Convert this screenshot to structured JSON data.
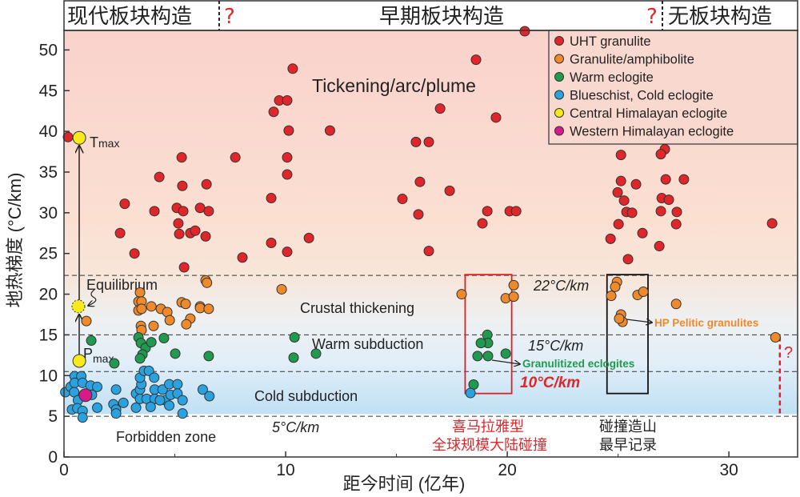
{
  "chart_data": {
    "type": "scatter",
    "xlabel": "距今时间 (亿年)",
    "ylabel": "地热梯度 (°C/km)",
    "xlim": [
      0,
      33.1
    ],
    "ylim": [
      0,
      52.4
    ],
    "xticks": [
      0,
      10,
      20,
      30
    ],
    "yticks": [
      0,
      5,
      10,
      15,
      20,
      25,
      30,
      35,
      40,
      45,
      50
    ],
    "grid": false,
    "legend_position": "top-right",
    "header": {
      "left": "现代板块构造",
      "center": "早期板块构造",
      "right": "无板块构造",
      "q1": "?",
      "q2": "?",
      "boundaries": [
        7.0,
        27.0
      ]
    },
    "gradient_lines": [
      {
        "label": "22°C/km",
        "y": 22.3
      },
      {
        "label": "15°C/km",
        "y": 15.0
      },
      {
        "label": "10°C/km",
        "y": 10.5
      },
      {
        "label": "5°C/km",
        "y": 5.0
      }
    ],
    "zones": {
      "plume": "Tickening/arc/plume",
      "crustal": "Crustal thickening",
      "warm": "Warm subduction",
      "cold": "Cold subduction",
      "forbidden": "Forbidden zone"
    },
    "annotations": {
      "tmax": "T",
      "tmax_sub": "max",
      "pmax": "P",
      "pmax_sub": "max",
      "equilibrium": "Equilibrium",
      "hp_pelitic": "HP Pelitic granulites",
      "granulitized": "Granulitized eclogites",
      "himalaya_line1": "喜马拉雅型",
      "himalaya_line2": "全球规模大陆碰撞",
      "earliest_line1": "碰撞造山",
      "earliest_line2": "最早记录",
      "question": "?"
    },
    "boxes": [
      {
        "name": "himalayan-type-box",
        "x": [
          18.1,
          20.2
        ],
        "y": [
          7.8,
          22.4
        ],
        "color": "#e02020"
      },
      {
        "name": "earliest-collision-box",
        "x": [
          24.5,
          26.35
        ],
        "y": [
          7.8,
          22.4
        ],
        "color": "#111111"
      }
    ],
    "question_line": {
      "x": 32.3,
      "y": [
        5.0,
        14.8
      ],
      "color": "#e02020"
    },
    "series": [
      {
        "name": "UHT granulite",
        "color": "#e0262a",
        "points": [
          [
            0.18,
            39.3
          ],
          [
            10.14,
            40.1
          ],
          [
            12.0,
            40.1
          ],
          [
            5.31,
            36.8
          ],
          [
            7.73,
            36.8
          ],
          [
            10.07,
            36.8
          ],
          [
            4.3,
            34.4
          ],
          [
            10.07,
            34.7
          ],
          [
            5.34,
            33.3
          ],
          [
            6.43,
            33.5
          ],
          [
            2.74,
            31.1
          ],
          [
            9.35,
            31.8
          ],
          [
            4.08,
            30.2
          ],
          [
            5.09,
            30.6
          ],
          [
            5.38,
            30.2
          ],
          [
            6.14,
            30.6
          ],
          [
            6.53,
            30.2
          ],
          [
            5.16,
            28.7
          ],
          [
            2.53,
            27.5
          ],
          [
            5.2,
            27.4
          ],
          [
            5.7,
            27.5
          ],
          [
            5.92,
            27.8
          ],
          [
            6.39,
            27.1
          ],
          [
            9.35,
            26.3
          ],
          [
            11.05,
            26.9
          ],
          [
            10.07,
            25.2
          ],
          [
            3.18,
            25.0
          ],
          [
            8.05,
            24.5
          ],
          [
            5.42,
            23.3
          ],
          [
            20.79,
            52.3
          ],
          [
            18.59,
            48.8
          ],
          [
            10.32,
            47.7
          ],
          [
            9.71,
            43.8
          ],
          [
            10.07,
            43.8
          ],
          [
            9.46,
            42.4
          ],
          [
            16.97,
            42.8
          ],
          [
            19.49,
            41.7
          ],
          [
            15.88,
            38.7
          ],
          [
            16.46,
            38.7
          ],
          [
            16.06,
            33.8
          ],
          [
            17.4,
            32.7
          ],
          [
            15.27,
            31.7
          ],
          [
            15.99,
            29.8
          ],
          [
            19.1,
            30.2
          ],
          [
            20.11,
            30.2
          ],
          [
            20.4,
            30.2
          ],
          [
            18.88,
            28.7
          ],
          [
            16.46,
            25.3
          ],
          [
            25.13,
            37.1
          ],
          [
            27.11,
            37.8
          ],
          [
            26.93,
            37.2
          ],
          [
            25.13,
            33.9
          ],
          [
            25.81,
            33.5
          ],
          [
            27.15,
            34.1
          ],
          [
            27.97,
            34.1
          ],
          [
            24.98,
            32.5
          ],
          [
            26.97,
            31.8
          ],
          [
            25.27,
            31.5
          ],
          [
            27.29,
            31.6
          ],
          [
            25.38,
            30.1
          ],
          [
            26.93,
            30.2
          ],
          [
            27.65,
            30.1
          ],
          [
            25.63,
            30.0
          ],
          [
            25.02,
            28.6
          ],
          [
            26.1,
            27.5
          ],
          [
            24.66,
            26.8
          ],
          [
            27.62,
            28.6
          ],
          [
            26.86,
            25.9
          ],
          [
            25.45,
            24.3
          ],
          [
            31.95,
            28.7
          ]
        ]
      },
      {
        "name": "Granulite/amphibolite",
        "color": "#ee8a2c",
        "points": [
          [
            1.01,
            16.7
          ],
          [
            3.43,
            20.2
          ],
          [
            3.36,
            19.1
          ],
          [
            3.5,
            19.1
          ],
          [
            3.36,
            18.0
          ],
          [
            3.5,
            18.2
          ],
          [
            3.94,
            18.5
          ],
          [
            4.37,
            18.2
          ],
          [
            4.66,
            17.8
          ],
          [
            4.77,
            16.8
          ],
          [
            5.31,
            19.0
          ],
          [
            5.49,
            18.8
          ],
          [
            5.7,
            17.0
          ],
          [
            5.52,
            16.3
          ],
          [
            6.14,
            18.5
          ],
          [
            6.14,
            18.3
          ],
          [
            6.53,
            18.2
          ],
          [
            6.39,
            21.7
          ],
          [
            6.45,
            21.4
          ],
          [
            4.04,
            16.1
          ],
          [
            3.47,
            16.1
          ],
          [
            3.5,
            15.6
          ],
          [
            9.82,
            20.6
          ],
          [
            17.94,
            20.0
          ],
          [
            19.93,
            19.5
          ],
          [
            20.29,
            21.1
          ],
          [
            20.29,
            19.7
          ],
          [
            24.95,
            21.5
          ],
          [
            24.87,
            20.9
          ],
          [
            24.69,
            19.8
          ],
          [
            25.13,
            17.5
          ],
          [
            25.2,
            16.6
          ],
          [
            25.05,
            17.0
          ],
          [
            25.88,
            19.9
          ],
          [
            26.14,
            20.3
          ],
          [
            27.62,
            18.8
          ],
          [
            32.1,
            14.7
          ]
        ]
      },
      {
        "name": "Warm eclogite",
        "color": "#1f9a4e",
        "points": [
          [
            1.23,
            14.3
          ],
          [
            3.36,
            14.7
          ],
          [
            3.47,
            14.0
          ],
          [
            3.68,
            13.4
          ],
          [
            3.94,
            14.1
          ],
          [
            4.51,
            14.6
          ],
          [
            3.54,
            12.6
          ],
          [
            3.43,
            12.1
          ],
          [
            2.27,
            11.5
          ],
          [
            5.02,
            12.7
          ],
          [
            6.53,
            12.4
          ],
          [
            10.4,
            14.7
          ],
          [
            10.36,
            12.2
          ],
          [
            11.37,
            12.7
          ],
          [
            19.1,
            15.0
          ],
          [
            19.13,
            14.0
          ],
          [
            18.81,
            14.0
          ],
          [
            18.66,
            12.4
          ],
          [
            19.13,
            12.4
          ],
          [
            19.93,
            12.7
          ],
          [
            18.48,
            8.9
          ]
        ]
      },
      {
        "name": "Blueschist, Cold eclogite",
        "color": "#2aa2e0",
        "points": [
          [
            0.06,
            7.96
          ],
          [
            0.3,
            8.61
          ],
          [
            0.48,
            9.92
          ],
          [
            0.78,
            9.92
          ],
          [
            0.48,
            9.1
          ],
          [
            0.84,
            9.1
          ],
          [
            0.46,
            7.96
          ],
          [
            0.63,
            6.97
          ],
          [
            0.36,
            5.83
          ],
          [
            0.6,
            5.99
          ],
          [
            0.84,
            5.67
          ],
          [
            0.84,
            4.85
          ],
          [
            1.2,
            8.78
          ],
          [
            1.5,
            8.61
          ],
          [
            1.26,
            7.63
          ],
          [
            1.5,
            6.06
          ],
          [
            2.35,
            8.28
          ],
          [
            2.23,
            6.48
          ],
          [
            2.35,
            5.83
          ],
          [
            2.35,
            5.34
          ],
          [
            2.68,
            6.65
          ],
          [
            3.25,
            7.79
          ],
          [
            3.25,
            6.06
          ],
          [
            3.43,
            8.28
          ],
          [
            3.49,
            8.94
          ],
          [
            3.43,
            9.75
          ],
          [
            3.61,
            10.58
          ],
          [
            3.83,
            10.58
          ],
          [
            4.07,
            9.75
          ],
          [
            3.43,
            7.14
          ],
          [
            3.73,
            7.14
          ],
          [
            4.09,
            8.28
          ],
          [
            4.09,
            7.14
          ],
          [
            4.45,
            8.28
          ],
          [
            4.57,
            6.97
          ],
          [
            4.75,
            8.94
          ],
          [
            5.12,
            8.94
          ],
          [
            4.81,
            7.63
          ],
          [
            5.12,
            7.79
          ],
          [
            5.35,
            6.97
          ],
          [
            4.75,
            6.32
          ],
          [
            5.35,
            5.34
          ],
          [
            6.26,
            8.28
          ],
          [
            6.56,
            7.47
          ],
          [
            3.91,
            6.16
          ],
          [
            4.33,
            6.97
          ],
          [
            18.34,
            7.86
          ]
        ]
      },
      {
        "name": "Central Himalayan eclogite",
        "color": "#f7ea1c",
        "points": [
          [
            0.69,
            39.2
          ],
          [
            0.65,
            18.5
          ],
          [
            0.69,
            11.8
          ]
        ]
      },
      {
        "name": "Western Himalayan eclogite",
        "color": "#d8198a",
        "points": [
          [
            0.97,
            7.6
          ]
        ]
      }
    ]
  }
}
